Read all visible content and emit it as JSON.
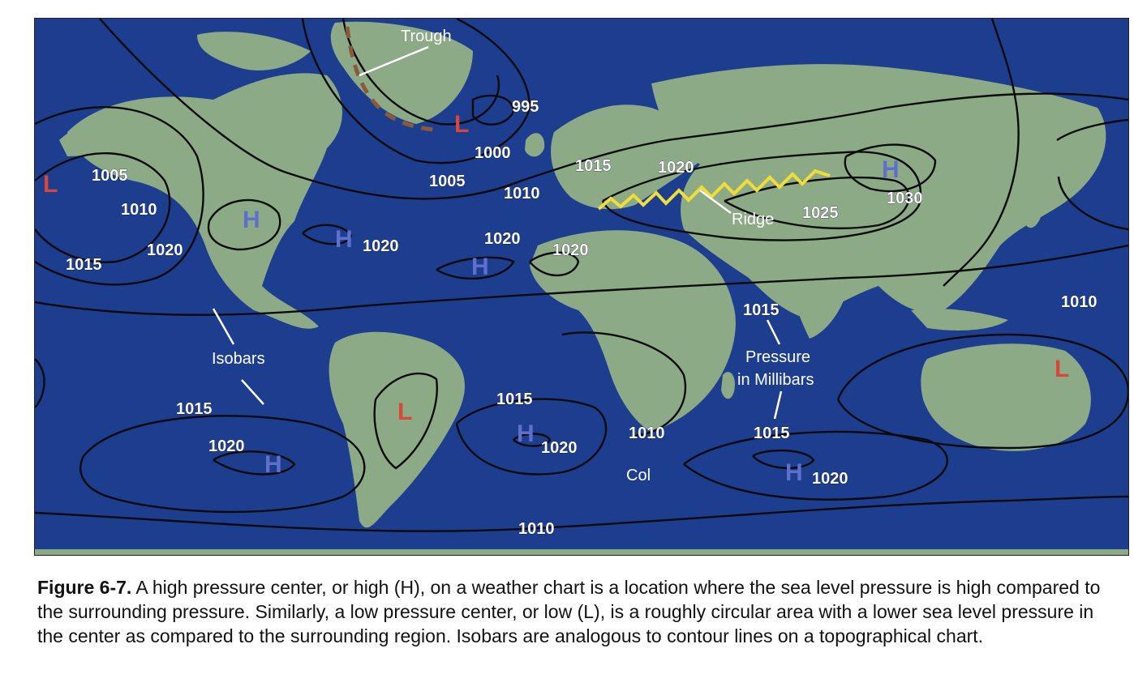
{
  "map": {
    "colors": {
      "ocean": "#1d3d8f",
      "land": "#8caa86",
      "isobar": "#0b0b0b",
      "ridge": "#f0dd3a",
      "trough": "#8a5a3a",
      "low": "#d8473a",
      "high": "#5f6fcc"
    },
    "annotations": {
      "trough": "Trough",
      "ridge": "Ridge",
      "isobars": "Isobars",
      "pressure_line1": "Pressure",
      "pressure_line2": "in Millibars",
      "col": "Col"
    },
    "pressure_centers": {
      "low": "L",
      "high": "H"
    },
    "isobar_labels": [
      "995",
      "1000",
      "1005",
      "1010",
      "1015",
      "1020",
      "1025",
      "1030"
    ]
  },
  "caption": {
    "figure": "Figure 6-7.",
    "text": " A high pressure center, or high (H), on a weather chart is a location where the sea level pressure is high compared to the surrounding pressure. Similarly, a low pressure center, or low (L), is a roughly circular area with a lower sea level pressure in the center as compared to the surrounding region. Isobars are analogous to contour lines on a topographical chart."
  }
}
